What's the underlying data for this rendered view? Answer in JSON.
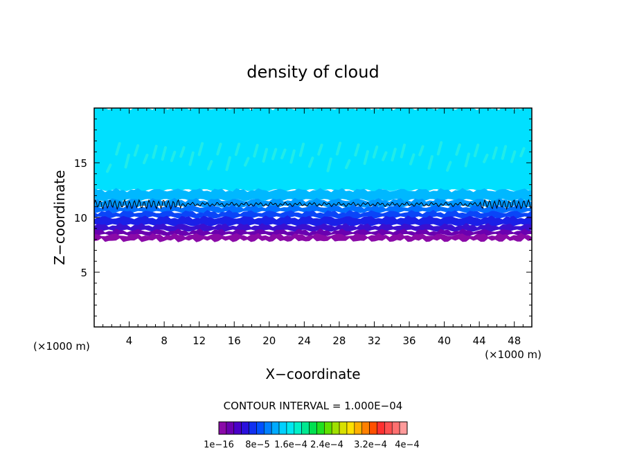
{
  "chart_data": {
    "type": "heatmap",
    "title": "density of cloud",
    "xlabel": "X−coordinate",
    "ylabel": "Z−coordinate",
    "x_unit_left": "(×1000 m)",
    "x_unit_right": "(×1000 m)",
    "xlim": [
      0,
      50
    ],
    "ylim": [
      0,
      20
    ],
    "x_ticks": [
      4,
      8,
      12,
      16,
      20,
      24,
      28,
      32,
      36,
      40,
      44,
      48
    ],
    "x_tick_labels": [
      "4",
      "8",
      "12",
      "16",
      "20",
      "24",
      "28",
      "32",
      "36",
      "40",
      "44",
      "48"
    ],
    "y_ticks": [
      5,
      10,
      15
    ],
    "y_tick_labels": [
      "5",
      "10",
      "15"
    ],
    "contour_interval_label": "CONTOUR INTERVAL = 1.000E−04",
    "colorbar_labels": [
      "1e−16",
      "8e−5",
      "1.6e−4",
      "2.4e−4",
      "3.2e−4",
      "4e−4"
    ],
    "colorbar_colors": [
      "#8a0aa8",
      "#6a00b0",
      "#4a00c8",
      "#2a10dc",
      "#1030f0",
      "#0050ff",
      "#0080ff",
      "#00aaff",
      "#00d0ff",
      "#00e8f0",
      "#00f0c8",
      "#00e890",
      "#00e050",
      "#20e020",
      "#60e000",
      "#a0e000",
      "#d8e000",
      "#ffe000",
      "#ffb000",
      "#ff8000",
      "#ff5000",
      "#ff3030",
      "#ff5050",
      "#ff7070",
      "#ff9a9a"
    ],
    "layers": [
      {
        "z_bottom": 7.9,
        "z_top": 8.4,
        "color": "#8a0aa8"
      },
      {
        "z_bottom": 8.4,
        "z_top": 8.8,
        "color": "#6a00b0"
      },
      {
        "z_bottom": 8.8,
        "z_top": 9.3,
        "color": "#3a10d0"
      },
      {
        "z_bottom": 9.3,
        "z_top": 10.0,
        "color": "#1a20e8"
      },
      {
        "z_bottom": 10.0,
        "z_top": 10.5,
        "color": "#0a45f8"
      },
      {
        "z_bottom": 10.5,
        "z_top": 11.0,
        "color": "#0070ff"
      },
      {
        "z_bottom": 11.0,
        "z_top": 11.6,
        "color": "#0098ff"
      },
      {
        "z_bottom": 11.6,
        "z_top": 12.5,
        "color": "#00b8ff"
      },
      {
        "z_bottom": 12.5,
        "z_top": 20.0,
        "color": "#00e0ff"
      }
    ],
    "contour_level_z": 11.2
  }
}
